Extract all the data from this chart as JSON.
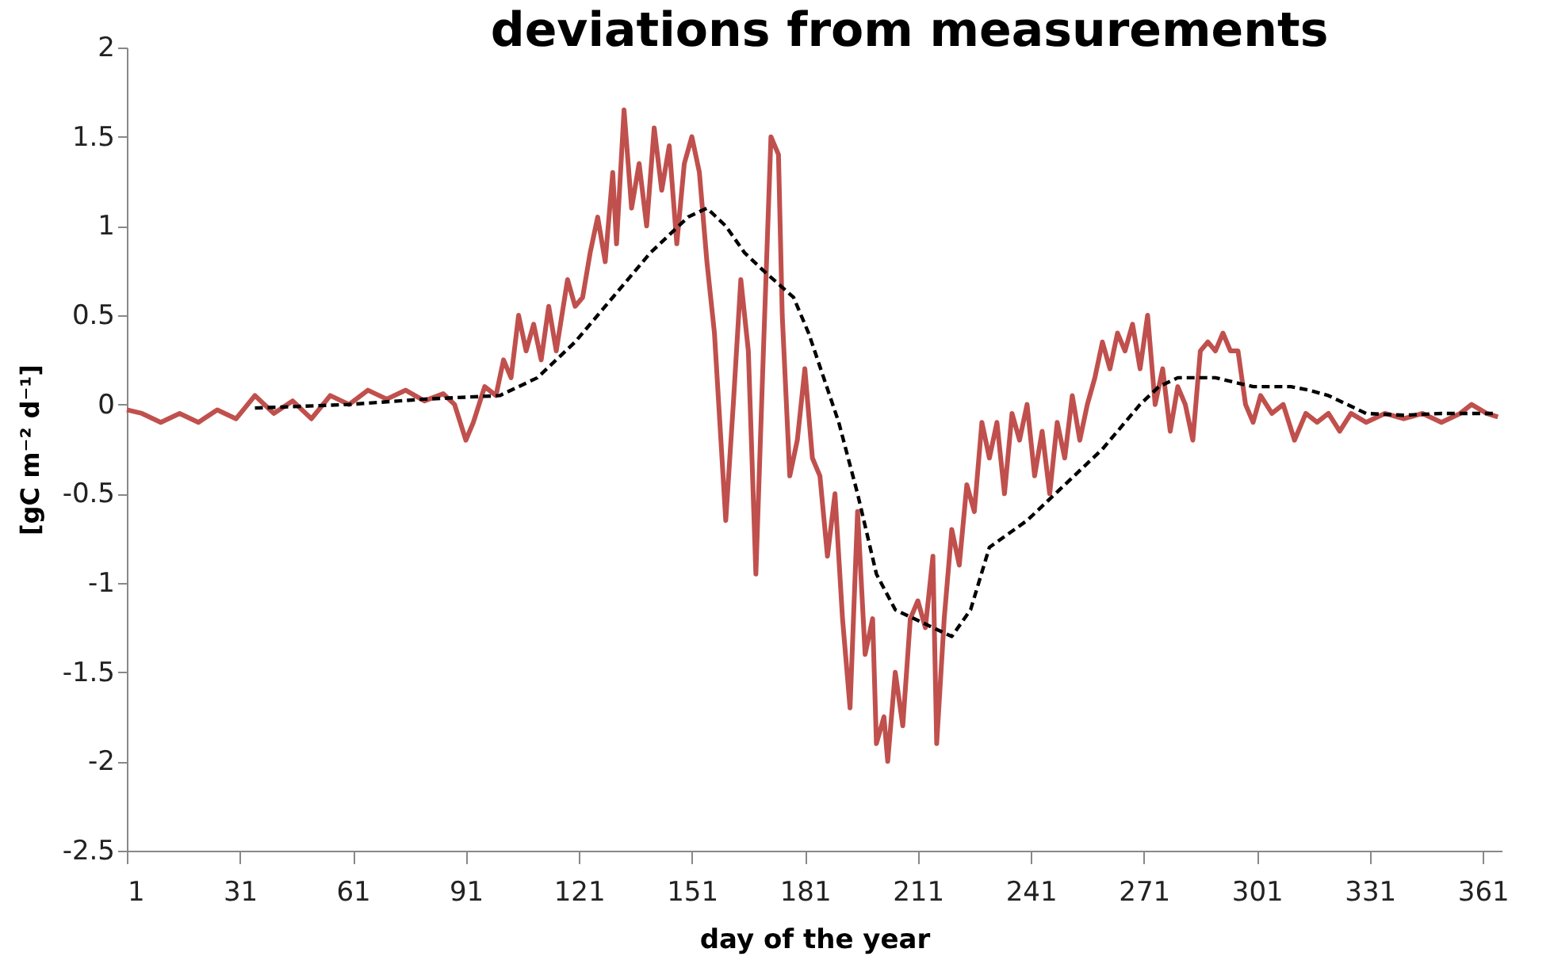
{
  "chart_data": {
    "type": "line",
    "title": "deviations from measurements",
    "xlabel": "day of the year",
    "ylabel": "[gC m⁻² d⁻¹]",
    "xlim": [
      1,
      366
    ],
    "xticks": [
      1,
      31,
      61,
      91,
      121,
      151,
      181,
      211,
      241,
      271,
      301,
      331,
      361
    ],
    "ylim": [
      -2.5,
      2
    ],
    "yticks": [
      -2.5,
      -2,
      -1.5,
      -1,
      -0.5,
      0,
      0.5,
      1,
      1.5,
      2
    ],
    "grid": false,
    "marker": "none",
    "series": [
      {
        "color": "#c0504d",
        "line_style": "solid",
        "x": [
          1,
          5,
          10,
          15,
          20,
          25,
          30,
          35,
          40,
          45,
          50,
          55,
          60,
          65,
          70,
          75,
          80,
          85,
          88,
          91,
          93,
          96,
          99,
          101,
          103,
          105,
          107,
          109,
          111,
          113,
          115,
          118,
          120,
          122,
          124,
          126,
          128,
          130,
          131,
          133,
          135,
          137,
          139,
          141,
          143,
          145,
          147,
          149,
          151,
          153,
          155,
          157,
          160,
          162,
          164,
          166,
          168,
          170,
          172,
          174,
          175,
          177,
          179,
          181,
          183,
          185,
          187,
          189,
          191,
          193,
          195,
          197,
          199,
          200,
          202,
          203,
          205,
          207,
          209,
          211,
          213,
          215,
          216,
          218,
          220,
          222,
          224,
          226,
          228,
          230,
          232,
          234,
          236,
          238,
          240,
          242,
          244,
          246,
          248,
          250,
          252,
          254,
          256,
          258,
          260,
          262,
          264,
          266,
          268,
          270,
          272,
          274,
          276,
          278,
          280,
          282,
          284,
          286,
          288,
          290,
          292,
          294,
          296,
          298,
          300,
          302,
          305,
          308,
          311,
          314,
          317,
          320,
          323,
          326,
          330,
          335,
          340,
          345,
          350,
          355,
          358,
          362,
          365
        ],
        "values": [
          -0.03,
          -0.05,
          -0.1,
          -0.05,
          -0.1,
          -0.03,
          -0.08,
          0.05,
          -0.05,
          0.02,
          -0.08,
          0.05,
          0.0,
          0.08,
          0.03,
          0.08,
          0.02,
          0.06,
          0.0,
          -0.2,
          -0.1,
          0.1,
          0.05,
          0.25,
          0.15,
          0.5,
          0.3,
          0.45,
          0.25,
          0.55,
          0.3,
          0.7,
          0.55,
          0.6,
          0.85,
          1.05,
          0.8,
          1.3,
          0.9,
          1.65,
          1.1,
          1.35,
          1.0,
          1.55,
          1.2,
          1.45,
          0.9,
          1.35,
          1.5,
          1.3,
          0.8,
          0.4,
          -0.65,
          0.0,
          0.7,
          0.3,
          -0.95,
          0.3,
          1.5,
          1.4,
          0.5,
          -0.4,
          -0.2,
          0.2,
          -0.3,
          -0.4,
          -0.85,
          -0.5,
          -1.2,
          -1.7,
          -0.6,
          -1.4,
          -1.2,
          -1.9,
          -1.75,
          -2.0,
          -1.5,
          -1.8,
          -1.2,
          -1.1,
          -1.25,
          -0.85,
          -1.9,
          -1.2,
          -0.7,
          -0.9,
          -0.45,
          -0.6,
          -0.1,
          -0.3,
          -0.1,
          -0.5,
          -0.05,
          -0.2,
          0.0,
          -0.4,
          -0.15,
          -0.5,
          -0.1,
          -0.3,
          0.05,
          -0.2,
          0.0,
          0.15,
          0.35,
          0.2,
          0.4,
          0.3,
          0.45,
          0.2,
          0.5,
          0.0,
          0.2,
          -0.15,
          0.1,
          0.0,
          -0.2,
          0.3,
          0.35,
          0.3,
          0.4,
          0.3,
          0.3,
          0.0,
          -0.1,
          0.05,
          -0.05,
          0.0,
          -0.2,
          -0.05,
          -0.1,
          -0.05,
          -0.15,
          -0.05,
          -0.1,
          -0.05,
          -0.08,
          -0.05,
          -0.1,
          -0.05,
          0.0,
          -0.05,
          -0.07
        ]
      },
      {
        "color": "#000000",
        "line_style": "dashed",
        "x": [
          35,
          60,
          80,
          100,
          110,
          120,
          130,
          140,
          150,
          155,
          160,
          165,
          170,
          178,
          182,
          190,
          195,
          200,
          205,
          210,
          215,
          220,
          225,
          230,
          240,
          250,
          260,
          270,
          275,
          280,
          290,
          300,
          310,
          315,
          320,
          325,
          330,
          340,
          350,
          360,
          364
        ],
        "values": [
          -0.02,
          0.0,
          0.03,
          0.05,
          0.15,
          0.35,
          0.6,
          0.85,
          1.05,
          1.1,
          1.0,
          0.85,
          0.75,
          0.6,
          0.4,
          -0.1,
          -0.5,
          -0.95,
          -1.15,
          -1.2,
          -1.25,
          -1.3,
          -1.15,
          -0.8,
          -0.65,
          -0.45,
          -0.25,
          0.0,
          0.1,
          0.15,
          0.15,
          0.1,
          0.1,
          0.08,
          0.05,
          0.0,
          -0.05,
          -0.06,
          -0.05,
          -0.05,
          -0.05
        ]
      }
    ]
  }
}
